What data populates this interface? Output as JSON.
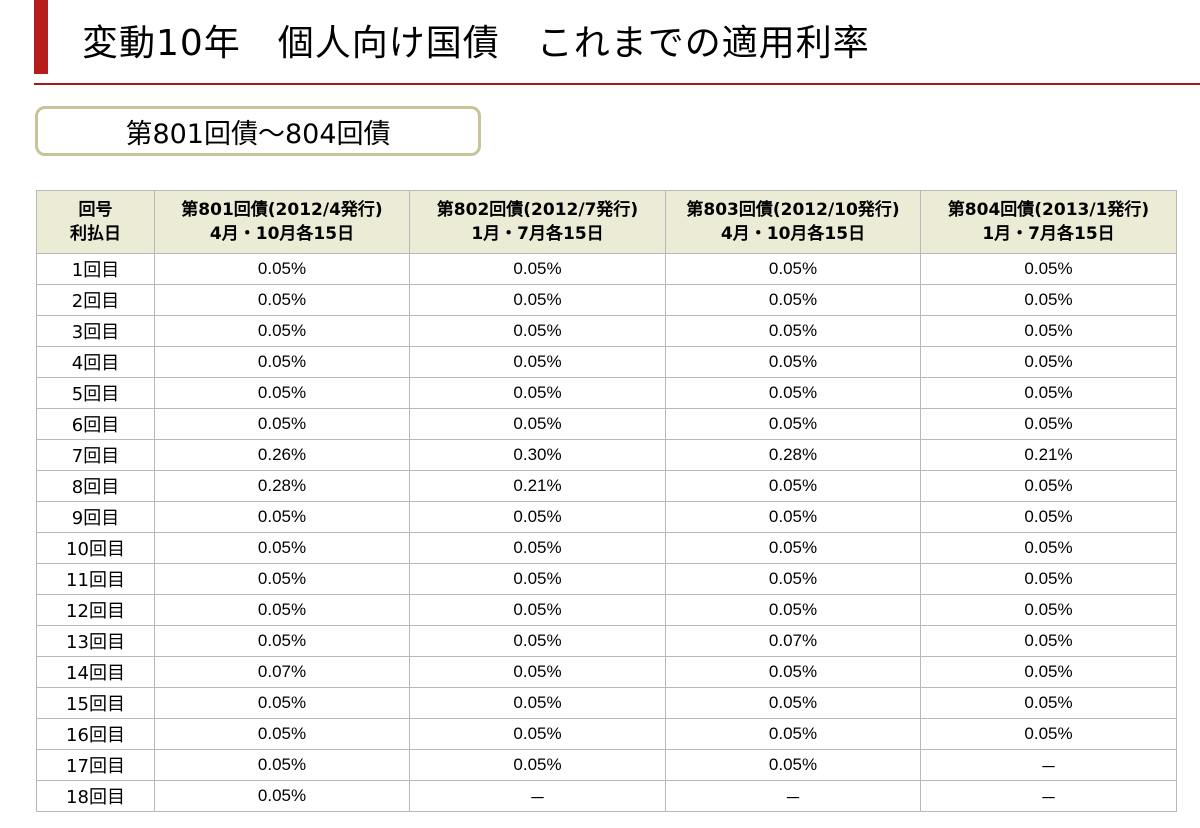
{
  "title": "変動10年　個人向け国債　これまでの適用利率",
  "subtitle": "第801回債～804回債",
  "table": {
    "corner": [
      "回号",
      "利払日"
    ],
    "columns": [
      {
        "name": "第801回債(2012/4発行)",
        "schedule": "4月・10月各15日"
      },
      {
        "name": "第802回債(2012/7発行)",
        "schedule": "1月・7月各15日"
      },
      {
        "name": "第803回債(2012/10発行)",
        "schedule": "4月・10月各15日"
      },
      {
        "name": "第804回債(2013/1発行)",
        "schedule": "1月・7月各15日"
      }
    ],
    "rows": [
      {
        "label": "1回目",
        "values": [
          "0.05%",
          "0.05%",
          "0.05%",
          "0.05%"
        ]
      },
      {
        "label": "2回目",
        "values": [
          "0.05%",
          "0.05%",
          "0.05%",
          "0.05%"
        ]
      },
      {
        "label": "3回目",
        "values": [
          "0.05%",
          "0.05%",
          "0.05%",
          "0.05%"
        ]
      },
      {
        "label": "4回目",
        "values": [
          "0.05%",
          "0.05%",
          "0.05%",
          "0.05%"
        ]
      },
      {
        "label": "5回目",
        "values": [
          "0.05%",
          "0.05%",
          "0.05%",
          "0.05%"
        ]
      },
      {
        "label": "6回目",
        "values": [
          "0.05%",
          "0.05%",
          "0.05%",
          "0.05%"
        ]
      },
      {
        "label": "7回目",
        "values": [
          "0.26%",
          "0.30%",
          "0.28%",
          "0.21%"
        ]
      },
      {
        "label": "8回目",
        "values": [
          "0.28%",
          "0.21%",
          "0.05%",
          "0.05%"
        ]
      },
      {
        "label": "9回目",
        "values": [
          "0.05%",
          "0.05%",
          "0.05%",
          "0.05%"
        ]
      },
      {
        "label": "10回目",
        "values": [
          "0.05%",
          "0.05%",
          "0.05%",
          "0.05%"
        ]
      },
      {
        "label": "11回目",
        "values": [
          "0.05%",
          "0.05%",
          "0.05%",
          "0.05%"
        ]
      },
      {
        "label": "12回目",
        "values": [
          "0.05%",
          "0.05%",
          "0.05%",
          "0.05%"
        ]
      },
      {
        "label": "13回目",
        "values": [
          "0.05%",
          "0.05%",
          "0.07%",
          "0.05%"
        ]
      },
      {
        "label": "14回目",
        "values": [
          "0.07%",
          "0.05%",
          "0.05%",
          "0.05%"
        ]
      },
      {
        "label": "15回目",
        "values": [
          "0.05%",
          "0.05%",
          "0.05%",
          "0.05%"
        ]
      },
      {
        "label": "16回目",
        "values": [
          "0.05%",
          "0.05%",
          "0.05%",
          "0.05%"
        ]
      },
      {
        "label": "17回目",
        "values": [
          "0.05%",
          "0.05%",
          "0.05%",
          "－"
        ]
      },
      {
        "label": "18回目",
        "values": [
          "0.05%",
          "－",
          "－",
          "－"
        ]
      }
    ]
  },
  "colors": {
    "accent": "#b71c1c",
    "header_bg": "#ecebd6",
    "subtitle_border": "#c7c497"
  }
}
